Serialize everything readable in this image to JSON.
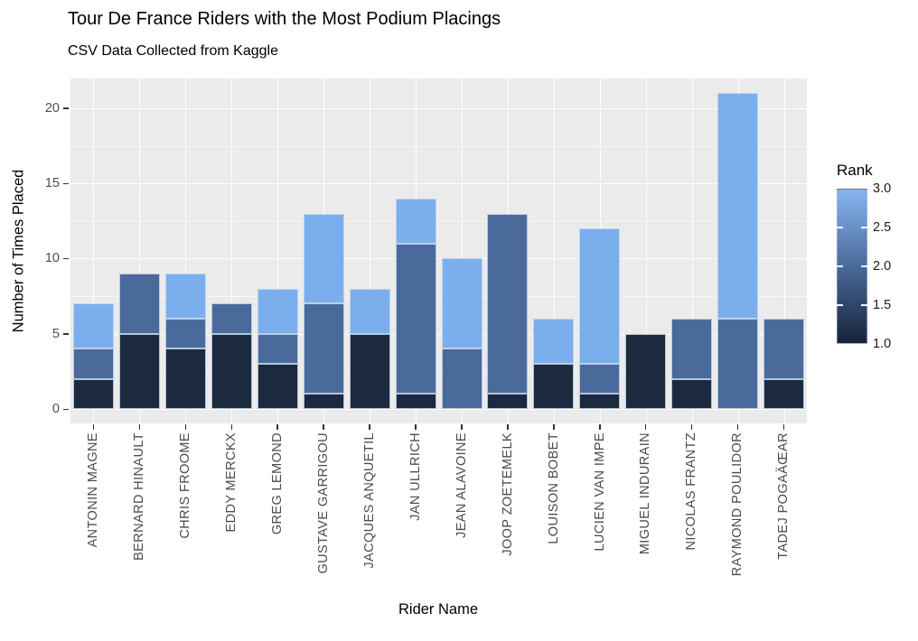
{
  "title": "Tour De France Riders with the Most Podium Placings",
  "subtitle": "CSV Data Collected from Kaggle",
  "chart_data": {
    "type": "bar",
    "variant": "stacked-vertical",
    "title": "Tour De France Riders with the Most Podium Placings",
    "subtitle": "CSV Data Collected from Kaggle",
    "xlabel": "Rider Name",
    "ylabel": "Number of Times Placed",
    "ylim": [
      0,
      22
    ],
    "yticks": [
      0,
      5,
      10,
      15,
      20
    ],
    "yticks_minor": [
      2.5,
      7.5,
      12.5,
      17.5
    ],
    "grid": true,
    "panel_background": "#EBEBEB",
    "gridline_color": "#FFFFFF",
    "categories": [
      "ANTONIN MAGNE",
      "BERNARD HINAULT",
      "CHRIS FROOME",
      "EDDY MERCKX",
      "GREG LEMOND",
      "GUSTAVE GARRIGOU",
      "JACQUES ANQUETIL",
      "JAN ULLRICH",
      "JEAN ALAVOINE",
      "JOOP ZOETEMELK",
      "LOUISON BOBET",
      "LUCIEN VAN IMPE",
      "MIGUEL INDURAIN",
      "NICOLAS FRANTZ",
      "RAYMOND POULIDOR",
      "TADEJ POGAÄŒAR"
    ],
    "series": [
      {
        "name": "Rank 1.0",
        "rank": 1.0,
        "color": "#1C2A40",
        "values": [
          2,
          5,
          4,
          5,
          3,
          1,
          5,
          1,
          0,
          1,
          3,
          1,
          5,
          2,
          0,
          2
        ]
      },
      {
        "name": "Rank 2.0",
        "rank": 2.0,
        "color": "#4A6A9B",
        "values": [
          2,
          4,
          2,
          2,
          2,
          6,
          0,
          10,
          4,
          12,
          0,
          2,
          0,
          4,
          6,
          4
        ]
      },
      {
        "name": "Rank 3.0",
        "rank": 3.0,
        "color": "#7BAEED",
        "values": [
          3,
          0,
          3,
          0,
          3,
          6,
          3,
          3,
          6,
          0,
          3,
          9,
          0,
          0,
          15,
          0
        ]
      }
    ],
    "totals": [
      7,
      9,
      9,
      7,
      8,
      13,
      8,
      14,
      10,
      13,
      6,
      12,
      5,
      6,
      21,
      6
    ],
    "legend": {
      "title": "Rank",
      "position": "right",
      "type": "continuous-gradient",
      "min": 1.0,
      "max": 3.0,
      "tick_labels": [
        "3.0",
        "2.5",
        "2.0",
        "1.5",
        "1.0"
      ],
      "gradient_bottom": "#16233B",
      "gradient_mid": "#4A6A9B",
      "gradient_top": "#87B6F0"
    }
  }
}
